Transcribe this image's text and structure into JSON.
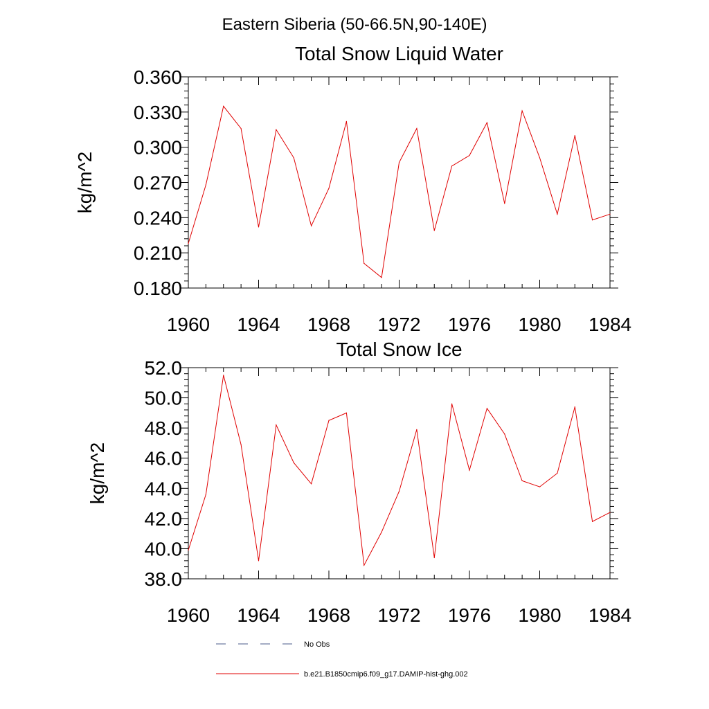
{
  "header": {
    "region_title": "Eastern Siberia (50-66.5N,90-140E)"
  },
  "chart_data": [
    {
      "type": "line",
      "title": "Total Snow Liquid Water",
      "ylabel": "kg/m^2",
      "xlabel": "",
      "xlim": [
        1960,
        1984
      ],
      "ylim": [
        0.18,
        0.36
      ],
      "x_ticks": [
        "1960",
        "1964",
        "1968",
        "1972",
        "1976",
        "1980",
        "1984"
      ],
      "y_ticks": [
        "0.180",
        "0.210",
        "0.240",
        "0.270",
        "0.300",
        "0.330",
        "0.360"
      ],
      "x": [
        1960,
        1961,
        1962,
        1963,
        1964,
        1965,
        1966,
        1967,
        1968,
        1969,
        1970,
        1971,
        1972,
        1973,
        1974,
        1975,
        1976,
        1977,
        1978,
        1979,
        1980,
        1981,
        1982,
        1983,
        1984
      ],
      "series": [
        {
          "name": "b.e21.B1850cmip6.f09_g17.DAMIP-hist-ghg.002",
          "color": "#e00000",
          "values": [
            0.218,
            0.268,
            0.335,
            0.316,
            0.232,
            0.315,
            0.291,
            0.233,
            0.265,
            0.322,
            0.201,
            0.189,
            0.287,
            0.316,
            0.229,
            0.284,
            0.293,
            0.321,
            0.252,
            0.331,
            0.291,
            0.243,
            0.31,
            0.238,
            0.243
          ]
        }
      ]
    },
    {
      "type": "line",
      "title": "Total Snow Ice",
      "ylabel": "kg/m^2",
      "xlabel": "",
      "xlim": [
        1960,
        1984
      ],
      "ylim": [
        38.0,
        52.0
      ],
      "x_ticks": [
        "1960",
        "1964",
        "1968",
        "1972",
        "1976",
        "1980",
        "1984"
      ],
      "y_ticks": [
        "38.0",
        "40.0",
        "42.0",
        "44.0",
        "46.0",
        "48.0",
        "50.0",
        "52.0"
      ],
      "x": [
        1960,
        1961,
        1962,
        1963,
        1964,
        1965,
        1966,
        1967,
        1968,
        1969,
        1970,
        1971,
        1972,
        1973,
        1974,
        1975,
        1976,
        1977,
        1978,
        1979,
        1980,
        1981,
        1982,
        1983,
        1984
      ],
      "series": [
        {
          "name": "b.e21.B1850cmip6.f09_g17.DAMIP-hist-ghg.002",
          "color": "#e00000",
          "values": [
            39.9,
            43.6,
            51.5,
            46.9,
            39.2,
            48.2,
            45.7,
            44.3,
            48.5,
            49.0,
            38.9,
            41.1,
            43.8,
            47.9,
            39.4,
            49.6,
            45.2,
            49.3,
            47.6,
            44.5,
            44.1,
            45.0,
            49.4,
            41.8,
            42.4
          ]
        }
      ]
    }
  ],
  "legend": {
    "items": [
      {
        "label": "No Obs",
        "style": "dashed",
        "color": "#4a5a8a"
      },
      {
        "label": "b.e21.B1850cmip6.f09_g17.DAMIP-hist-ghg.002",
        "style": "solid",
        "color": "#e00000"
      }
    ]
  }
}
